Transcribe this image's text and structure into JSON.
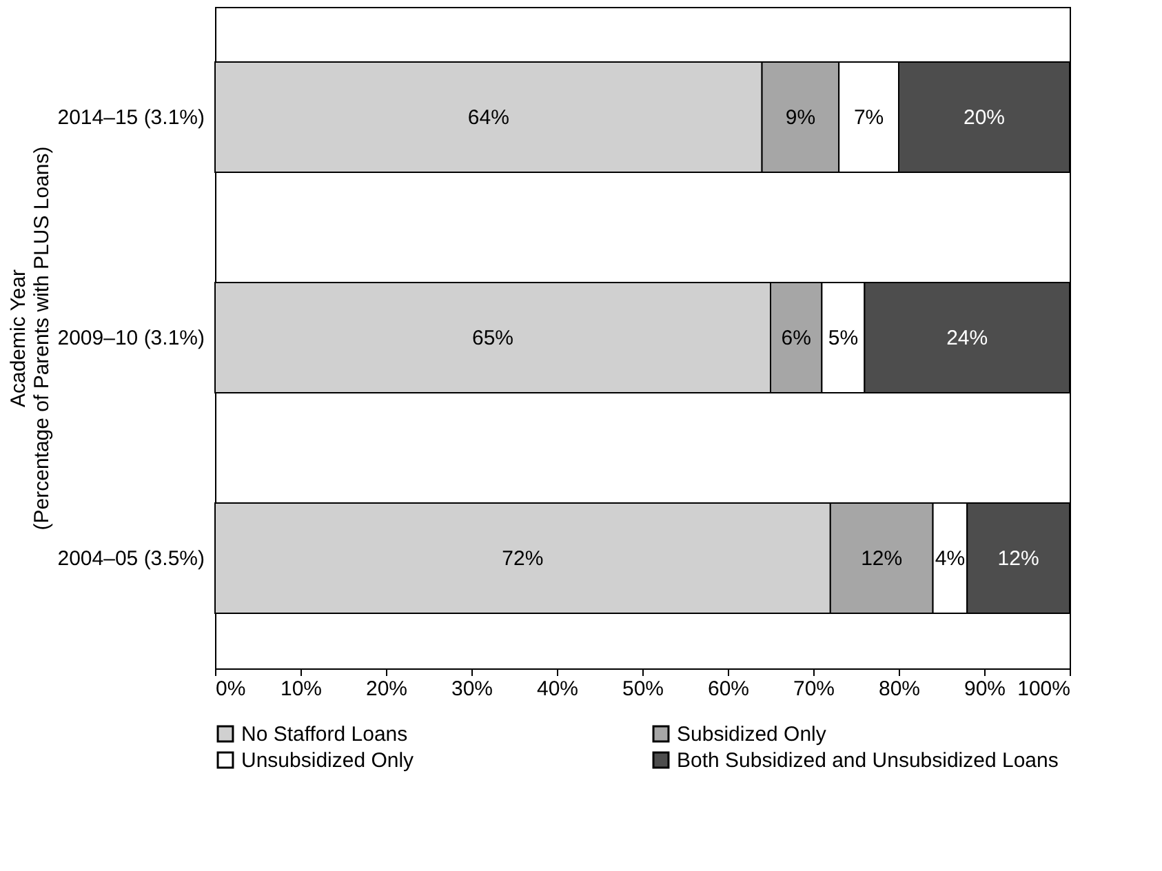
{
  "chart_data": {
    "type": "bar",
    "orientation": "horizontal",
    "stacked": true,
    "ylabel": "Academic Year\n(Percentage of Parents with PLUS Loans)",
    "categories": [
      "2014–15 (3.1%)",
      "2009–10 (3.1%)",
      "2004–05 (3.5%)"
    ],
    "series": [
      {
        "name": "No Stafford Loans",
        "color": "#d0d0d0",
        "values": [
          64,
          65,
          72
        ],
        "value_labels": [
          "64%",
          "65%",
          "72%"
        ]
      },
      {
        "name": "Subsidized Only",
        "color": "#a6a6a6",
        "values": [
          9,
          6,
          12
        ],
        "value_labels": [
          "9%",
          "6%",
          "12%"
        ]
      },
      {
        "name": "Unsubsidized Only",
        "color": "#ffffff",
        "values": [
          7,
          5,
          4
        ],
        "value_labels": [
          "7%",
          "5%",
          "4%"
        ]
      },
      {
        "name": "Both Subsidized and Unsubsidized Loans",
        "color": "#4d4d4d",
        "values": [
          20,
          24,
          12
        ],
        "value_labels": [
          "20%",
          "24%",
          "12%"
        ]
      }
    ],
    "xlim": [
      0,
      100
    ],
    "xticks": [
      {
        "value": 0,
        "label": "0%"
      },
      {
        "value": 10,
        "label": "10%"
      },
      {
        "value": 20,
        "label": "20%"
      },
      {
        "value": 30,
        "label": "30%"
      },
      {
        "value": 40,
        "label": "40%"
      },
      {
        "value": 50,
        "label": "50%"
      },
      {
        "value": 60,
        "label": "60%"
      },
      {
        "value": 70,
        "label": "70%"
      },
      {
        "value": 80,
        "label": "80%"
      },
      {
        "value": 90,
        "label": "90%"
      },
      {
        "value": 100,
        "label": "100%"
      }
    ],
    "grid": false,
    "legend": "bottom"
  }
}
